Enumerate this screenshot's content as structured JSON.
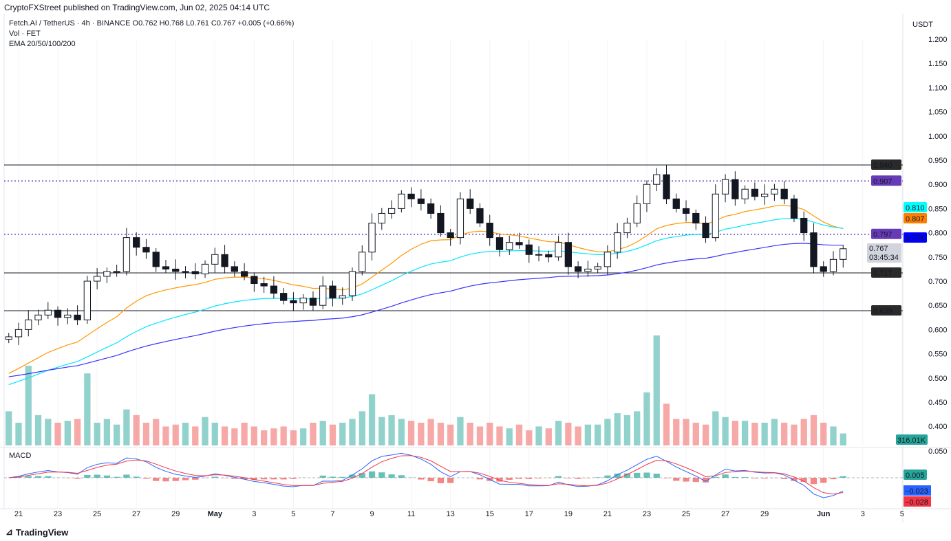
{
  "publisher": "CryptoFXStreet published on TradingView.com, Jun 02, 2025 04:14 UTC",
  "legend": {
    "symbol_line": "Fetch.AI / TetherUS · 4h · BINANCE  O0.762  H0.768  L0.761  C0.767  +0.005 (+0.66%)",
    "vol": "Vol · FET",
    "ema": "EMA 20/50/100/200",
    "macd": "MACD"
  },
  "currency": "USDT",
  "logo": "TradingView",
  "chart_data": {
    "type": "candlestick",
    "interval": "4h",
    "ylim": [
      0.45,
      1.2
    ],
    "y_ticks": [
      "1.200",
      "1.150",
      "1.100",
      "1.050",
      "1.000",
      "0.950",
      "0.900",
      "0.850",
      "0.800",
      "0.750",
      "0.700",
      "0.650",
      "0.600",
      "0.550",
      "0.500",
      "0.450",
      "0.400"
    ],
    "x_ticks": [
      {
        "d": 0,
        "l": "21"
      },
      {
        "d": 2,
        "l": "23"
      },
      {
        "d": 4,
        "l": "25"
      },
      {
        "d": 6,
        "l": "27"
      },
      {
        "d": 8,
        "l": "29"
      },
      {
        "d": 10,
        "l": "May"
      },
      {
        "d": 12,
        "l": "3"
      },
      {
        "d": 14,
        "l": "5"
      },
      {
        "d": 16,
        "l": "7"
      },
      {
        "d": 18,
        "l": "9"
      },
      {
        "d": 20,
        "l": "11"
      },
      {
        "d": 22,
        "l": "13"
      },
      {
        "d": 24,
        "l": "15"
      },
      {
        "d": 26,
        "l": "17"
      },
      {
        "d": 28,
        "l": "19"
      },
      {
        "d": 30,
        "l": "21"
      },
      {
        "d": 32,
        "l": "23"
      },
      {
        "d": 34,
        "l": "25"
      },
      {
        "d": 36,
        "l": "27"
      },
      {
        "d": 38,
        "l": "29"
      },
      {
        "d": 41,
        "l": "Jun"
      },
      {
        "d": 43,
        "l": "3"
      },
      {
        "d": 45,
        "l": "5"
      }
    ],
    "start_day_offset": -0.5,
    "step_days": 0.5,
    "closes": [
      0.585,
      0.6,
      0.62,
      0.63,
      0.64,
      0.625,
      0.63,
      0.62,
      0.7,
      0.71,
      0.72,
      0.72,
      0.79,
      0.77,
      0.76,
      0.73,
      0.725,
      0.72,
      0.72,
      0.715,
      0.735,
      0.755,
      0.73,
      0.72,
      0.71,
      0.695,
      0.69,
      0.675,
      0.66,
      0.655,
      0.665,
      0.65,
      0.69,
      0.665,
      0.67,
      0.72,
      0.76,
      0.82,
      0.84,
      0.85,
      0.88,
      0.87,
      0.86,
      0.84,
      0.8,
      0.79,
      0.87,
      0.85,
      0.82,
      0.79,
      0.765,
      0.78,
      0.775,
      0.755,
      0.755,
      0.75,
      0.78,
      0.73,
      0.72,
      0.725,
      0.73,
      0.76,
      0.8,
      0.82,
      0.86,
      0.9,
      0.92,
      0.87,
      0.85,
      0.84,
      0.82,
      0.79,
      0.88,
      0.91,
      0.87,
      0.89,
      0.875,
      0.88,
      0.89,
      0.87,
      0.83,
      0.8,
      0.73,
      0.72,
      0.745,
      0.767
    ],
    "volumes_k": [
      900,
      600,
      2100,
      800,
      700,
      600,
      650,
      700,
      1900,
      600,
      700,
      550,
      950,
      800,
      600,
      700,
      500,
      550,
      600,
      500,
      750,
      600,
      500,
      450,
      600,
      500,
      400,
      450,
      500,
      400,
      450,
      600,
      650,
      550,
      600,
      700,
      900,
      1350,
      750,
      800,
      700,
      650,
      600,
      700,
      600,
      550,
      750,
      600,
      500,
      600,
      500,
      450,
      550,
      400,
      500,
      450,
      650,
      600,
      500,
      550,
      550,
      700,
      850,
      800,
      900,
      1400,
      2900,
      1100,
      700,
      700,
      600,
      550,
      900,
      750,
      650,
      650,
      600,
      600,
      700,
      600,
      550,
      700,
      800,
      600,
      500,
      316.01
    ],
    "ema_seeds": {
      "ema50": 0.5,
      "ema100": 0.48,
      "ema200": 0.5
    },
    "series_colors": {
      "ema50": "#ff9800",
      "ema100": "#00e5ff",
      "ema200": "#3333ff",
      "up": "#26a69a",
      "down": "#ef5350"
    },
    "levels": [
      {
        "value": 0.94,
        "label": "0.940",
        "style": "solid",
        "color": "#131722"
      },
      {
        "value": 0.907,
        "label": "0.907",
        "style": "dotted",
        "color": "#673ab7"
      },
      {
        "value": 0.797,
        "label": "0.797",
        "style": "dotted",
        "color": "#673ab7"
      },
      {
        "value": 0.717,
        "label": "0.717",
        "style": "solid",
        "color": "#131722"
      },
      {
        "value": 0.639,
        "label": "0.639",
        "style": "solid",
        "color": "#131722"
      }
    ],
    "price_tags": [
      {
        "value": 0.81,
        "label": "0.810",
        "bg": "#00ffff",
        "fg": "#131722"
      },
      {
        "value": 0.807,
        "label": "0.807",
        "bg": "#ff7f00",
        "fg": "#fff"
      },
      {
        "value": 0.776,
        "label": "0.776",
        "bg": "#0000ff",
        "fg": "#fff"
      }
    ],
    "last_price": {
      "label": "0.767",
      "countdown": "03:45:34"
    },
    "volume_tag": "316.01K",
    "macd": {
      "ticks": [
        "0.050"
      ],
      "histogram_tag": "0.005",
      "macd_tag": "−0.023",
      "signal_tag": "−0.028",
      "ylim": [
        -0.04,
        0.055
      ]
    }
  }
}
